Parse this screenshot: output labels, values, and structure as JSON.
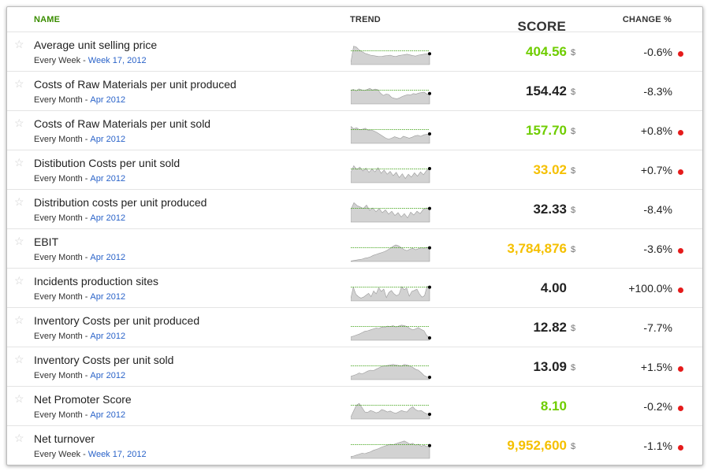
{
  "headers": {
    "name": "NAME",
    "trend": "TREND",
    "score": "SCORE",
    "change": "CHANGE %"
  },
  "colors": {
    "green": "#6fcd00",
    "yellow": "#f5c000",
    "dark": "#222222",
    "alert": "#e51b1b",
    "link": "#2a63c9"
  },
  "rows": [
    {
      "name": "Average unit selling price",
      "frequency": "Every Week",
      "period": "Week 17, 2012",
      "score": "404.56",
      "unit": "$",
      "score_color": "green",
      "change": "-0.6%",
      "alert": true,
      "trend": [
        8,
        78,
        74,
        62,
        55,
        48,
        44,
        40,
        38,
        36,
        34,
        35,
        37,
        38,
        40,
        36,
        34,
        38,
        40,
        42,
        44,
        41,
        38,
        36,
        40,
        42,
        44,
        46,
        46
      ]
    },
    {
      "name": "Costs of Raw Materials per unit produced",
      "frequency": "Every Month",
      "period": "Apr 2012",
      "score": "154.42",
      "unit": "$",
      "score_color": "dark",
      "change": "-8.3%",
      "alert": false,
      "trend": [
        58,
        62,
        55,
        64,
        60,
        57,
        61,
        66,
        59,
        63,
        60,
        45,
        36,
        42,
        40,
        28,
        24,
        22,
        26,
        32,
        36,
        40,
        38,
        44,
        42,
        46,
        48,
        50,
        42,
        44
      ]
    },
    {
      "name": "Costs of Raw Materials per unit sold",
      "frequency": "Every Month",
      "period": "Apr 2012",
      "score": "157.70",
      "unit": "$",
      "score_color": "green",
      "change": "+0.8%",
      "alert": true,
      "trend": [
        72,
        62,
        66,
        58,
        60,
        64,
        55,
        57,
        52,
        46,
        38,
        30,
        22,
        18,
        22,
        28,
        24,
        20,
        30,
        26,
        22,
        26,
        32,
        34,
        30,
        36,
        38,
        40
      ]
    },
    {
      "name": "Distibution Costs per unit sold",
      "frequency": "Every Month",
      "period": "Apr 2012",
      "score": "33.02",
      "unit": "$",
      "score_color": "yellow",
      "change": "+0.7%",
      "alert": true,
      "trend": [
        44,
        72,
        56,
        66,
        50,
        62,
        44,
        58,
        46,
        64,
        40,
        54,
        36,
        48,
        30,
        44,
        22,
        38,
        18,
        36,
        24,
        42,
        28,
        46,
        34,
        52,
        60
      ]
    },
    {
      "name": "Distribution costs per unit produced",
      "frequency": "Every Month",
      "period": "Apr 2012",
      "score": "32.33",
      "unit": "$",
      "score_color": "dark",
      "change": "-8.4%",
      "alert": false,
      "trend": [
        52,
        82,
        70,
        64,
        58,
        72,
        50,
        60,
        44,
        58,
        40,
        52,
        34,
        46,
        28,
        40,
        22,
        36,
        18,
        42,
        30,
        46,
        36,
        54,
        60,
        58
      ]
    },
    {
      "name": "EBIT",
      "frequency": "Every Month",
      "period": "Apr 2012",
      "score": "3,784,876",
      "unit": "$",
      "score_color": "yellow",
      "change": "-3.6%",
      "alert": true,
      "trend": [
        2,
        4,
        6,
        8,
        10,
        14,
        16,
        20,
        26,
        30,
        34,
        38,
        42,
        48,
        56,
        64,
        70,
        66,
        58,
        50,
        46,
        52,
        56,
        50,
        54,
        58,
        56,
        60,
        58
      ]
    },
    {
      "name": "Incidents production sites",
      "frequency": "Every Month",
      "period": "Apr 2012",
      "score": "4.00",
      "unit": "",
      "score_color": "dark",
      "change": "+100.0%",
      "alert": true,
      "trend": [
        10,
        58,
        28,
        18,
        12,
        16,
        24,
        32,
        18,
        42,
        30,
        56,
        40,
        50,
        14,
        36,
        44,
        30,
        22,
        28,
        60,
        48,
        54,
        20,
        40,
        44,
        50,
        30,
        16,
        22,
        62,
        58
      ]
    },
    {
      "name": "Inventory Costs per unit produced",
      "frequency": "Every Month",
      "period": "Apr 2012",
      "score": "12.82",
      "unit": "$",
      "score_color": "dark",
      "change": "-7.7%",
      "alert": false,
      "trend": [
        14,
        18,
        22,
        26,
        32,
        38,
        40,
        44,
        48,
        52,
        50,
        56,
        54,
        60,
        58,
        62,
        56,
        60,
        64,
        62,
        58,
        50,
        44,
        48,
        54,
        46,
        40,
        20,
        10
      ]
    },
    {
      "name": "Inventory Costs per unit sold",
      "frequency": "Every Month",
      "period": "Apr 2012",
      "score": "13.09",
      "unit": "$",
      "score_color": "dark",
      "change": "+1.5%",
      "alert": true,
      "trend": [
        14,
        18,
        22,
        28,
        24,
        30,
        36,
        40,
        38,
        44,
        50,
        56,
        58,
        60,
        62,
        64,
        62,
        60,
        58,
        64,
        62,
        58,
        52,
        44,
        40,
        30,
        18,
        12,
        10
      ]
    },
    {
      "name": "Net Promoter Score",
      "frequency": "Every Month",
      "period": "Apr 2012",
      "score": "8.10",
      "unit": "",
      "score_color": "green",
      "change": "-0.2%",
      "alert": true,
      "trend": [
        8,
        34,
        58,
        66,
        48,
        30,
        28,
        36,
        32,
        26,
        30,
        40,
        36,
        30,
        34,
        28,
        24,
        30,
        36,
        32,
        30,
        44,
        52,
        40,
        34,
        36,
        28,
        22,
        20
      ]
    },
    {
      "name": "Net turnover",
      "frequency": "Every Week",
      "period": "Week 17, 2012",
      "score": "9,952,600",
      "unit": "$",
      "score_color": "yellow",
      "change": "-1.1%",
      "alert": true,
      "trend": [
        8,
        10,
        14,
        18,
        22,
        20,
        24,
        28,
        34,
        38,
        42,
        48,
        52,
        56,
        60,
        58,
        62,
        66,
        70,
        74,
        68,
        60,
        64,
        56,
        60,
        52,
        56,
        50,
        54
      ]
    }
  ]
}
